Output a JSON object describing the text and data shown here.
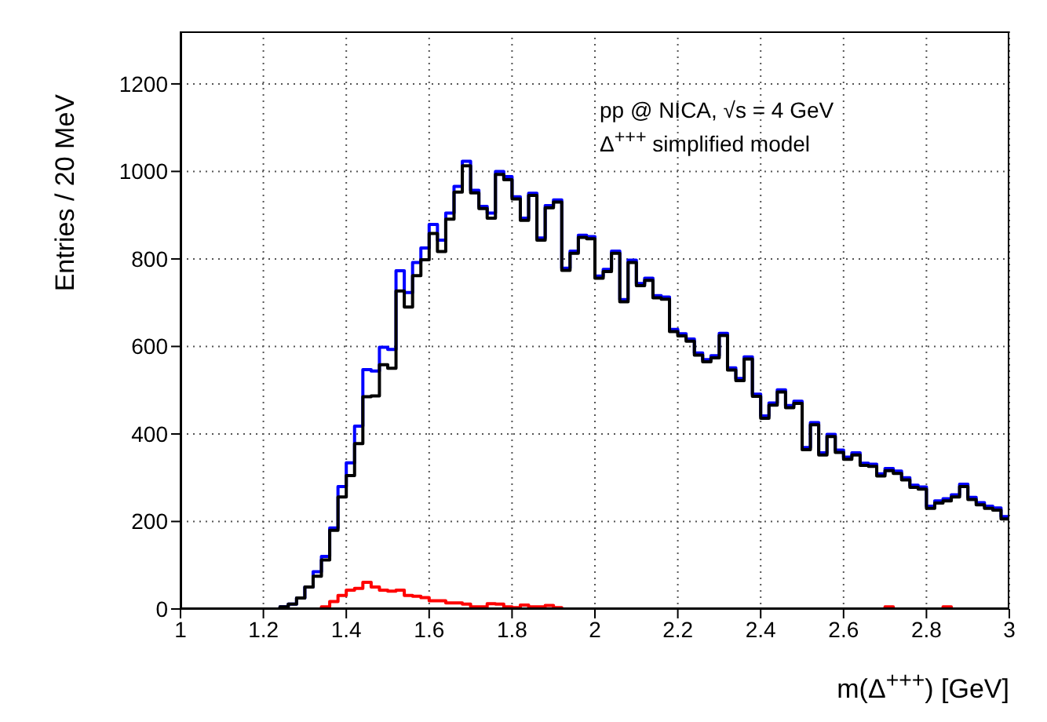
{
  "chart_data": {
    "type": "histogram",
    "xlabel": "m(Δ$^{+++}$) [GeV]",
    "ylabel": "Entries / 20 MeV",
    "annotations": [
      "pp @ NICA, √s = 4 GeV",
      "Δ$^{+++}$ simplified model"
    ],
    "bins": [
      1.0,
      1.02,
      1.04,
      1.06,
      1.08,
      1.1,
      1.12,
      1.14,
      1.16,
      1.18,
      1.2,
      1.22,
      1.24,
      1.26,
      1.28,
      1.3,
      1.32,
      1.34,
      1.36,
      1.38,
      1.4,
      1.42,
      1.44,
      1.46,
      1.48,
      1.5,
      1.52,
      1.54,
      1.56,
      1.58,
      1.6,
      1.62,
      1.64,
      1.66,
      1.68,
      1.7,
      1.72,
      1.74,
      1.76,
      1.78,
      1.8,
      1.82,
      1.84,
      1.86,
      1.88,
      1.9,
      1.92,
      1.94,
      1.96,
      1.98,
      2.0,
      2.02,
      2.04,
      2.06,
      2.08,
      2.1,
      2.12,
      2.14,
      2.16,
      2.18,
      2.2,
      2.22,
      2.24,
      2.26,
      2.28,
      2.3,
      2.32,
      2.34,
      2.36,
      2.38,
      2.4,
      2.42,
      2.44,
      2.46,
      2.48,
      2.5,
      2.52,
      2.54,
      2.56,
      2.58,
      2.6,
      2.62,
      2.64,
      2.66,
      2.68,
      2.7,
      2.72,
      2.74,
      2.76,
      2.78,
      2.8,
      2.82,
      2.84,
      2.86,
      2.88,
      2.9,
      2.92,
      2.94,
      2.96,
      2.98,
      3.0
    ],
    "series": [
      {
        "color": "#0000ff",
        "values": [
          0,
          0,
          0,
          0,
          0,
          0,
          0,
          0,
          0,
          0,
          0,
          0,
          5,
          11,
          25,
          50,
          85,
          120,
          185,
          280,
          334,
          418,
          547,
          544,
          598,
          593,
          773,
          723,
          792,
          825,
          879,
          843,
          905,
          966,
          1023,
          957,
          920,
          905,
          1000,
          988,
          942,
          893,
          950,
          848,
          922,
          935,
          779,
          818,
          854,
          851,
          761,
          776,
          818,
          707,
          797,
          744,
          756,
          716,
          713,
          639,
          629,
          617,
          585,
          570,
          579,
          630,
          551,
          527,
          576,
          491,
          441,
          471,
          501,
          465,
          475,
          369,
          426,
          357,
          399,
          363,
          347,
          357,
          333,
          331,
          309,
          321,
          315,
          300,
          283,
          279,
          235,
          247,
          252,
          261,
          285,
          255,
          243,
          235,
          231,
          211
        ]
      },
      {
        "color": "#000000",
        "values": [
          0,
          0,
          0,
          0,
          0,
          0,
          0,
          0,
          0,
          0,
          0,
          0,
          5,
          11,
          25,
          50,
          75,
          112,
          180,
          256,
          305,
          378,
          485,
          487,
          558,
          550,
          727,
          690,
          762,
          798,
          858,
          817,
          891,
          953,
          1013,
          951,
          915,
          893,
          993,
          981,
          937,
          888,
          945,
          843,
          917,
          930,
          774,
          813,
          849,
          846,
          756,
          771,
          813,
          702,
          792,
          739,
          751,
          711,
          708,
          634,
          624,
          612,
          580,
          565,
          574,
          625,
          546,
          522,
          571,
          486,
          436,
          466,
          496,
          460,
          470,
          364,
          421,
          352,
          394,
          358,
          342,
          352,
          328,
          326,
          304,
          316,
          310,
          295,
          278,
          274,
          230,
          242,
          247,
          256,
          280,
          250,
          238,
          230,
          226,
          206
        ]
      },
      {
        "color": "#ff0000",
        "values": [
          0,
          0,
          0,
          0,
          0,
          0,
          0,
          0,
          0,
          0,
          0,
          0,
          0,
          0,
          0,
          0,
          0,
          5,
          17,
          31,
          43,
          47,
          61,
          50,
          43,
          41,
          43,
          31,
          29,
          26,
          19,
          19,
          14,
          14,
          11,
          5,
          5,
          12,
          11,
          5,
          3,
          9,
          5,
          5,
          8,
          3,
          0,
          0,
          0,
          0,
          0,
          0,
          0,
          0,
          0,
          0,
          0,
          0,
          0,
          0,
          0,
          0,
          0,
          0,
          0,
          0,
          0,
          0,
          0,
          0,
          0,
          0,
          0,
          0,
          0,
          0,
          0,
          0,
          0,
          0,
          0,
          0,
          0,
          0,
          0,
          5,
          0,
          0,
          0,
          0,
          0,
          0,
          5,
          0,
          0,
          0,
          0,
          0,
          0,
          0
        ]
      }
    ],
    "xlim": [
      1,
      3
    ],
    "xticks": [
      1,
      1.2,
      1.4,
      1.6,
      1.8,
      2,
      2.2,
      2.4,
      2.6,
      2.8,
      3
    ],
    "ylim": [
      0,
      1320
    ],
    "yticks": [
      0,
      200,
      400,
      600,
      800,
      1000,
      1200
    ],
    "grid": true
  }
}
